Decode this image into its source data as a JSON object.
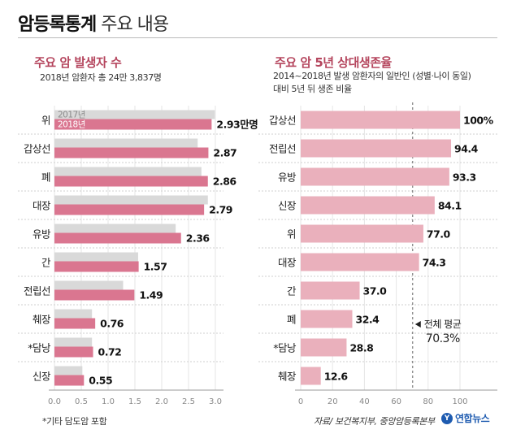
{
  "header": {
    "title": "암등록통계",
    "subtitle": "주요 내용"
  },
  "left_panel": {
    "title": "주요 암 발생자 수",
    "subtitle": "2018년 암환자 총 24만 3,837명"
  },
  "right_panel": {
    "title": "주요 암 5년 상대생존율",
    "subtitle_line1": "2014~2018년 발생 암환자의 일반인 (성별·나이 동일)",
    "subtitle_line2": "대비 5년 뒤 생존 비율"
  },
  "footer": {
    "note": "*기타 담도암 포함",
    "source": "자료/ 보건복지부, 중앙암등록본부",
    "logo_text": "연합뉴스"
  },
  "colors": {
    "accent": "#b5465e",
    "bar_2018": "#da7690",
    "bar_2017": "#d9d9d9",
    "bar_right": "#eab0bc"
  },
  "chart_data": [
    {
      "type": "bar",
      "orientation": "horizontal",
      "title": "주요 암 발생자 수",
      "unit": "만명",
      "categories": [
        "위",
        "갑상선",
        "폐",
        "대장",
        "유방",
        "간",
        "전립선",
        "췌장",
        "*담낭",
        "신장"
      ],
      "series": [
        {
          "name": "2017년",
          "values": [
            2.99,
            2.67,
            2.74,
            2.86,
            2.26,
            1.56,
            1.28,
            0.7,
            0.7,
            0.52
          ]
        },
        {
          "name": "2018년",
          "values": [
            2.93,
            2.87,
            2.86,
            2.79,
            2.36,
            1.57,
            1.49,
            0.76,
            0.72,
            0.55
          ]
        }
      ],
      "value_labels": [
        "2.93만명",
        "2.87",
        "2.86",
        "2.79",
        "2.36",
        "1.57",
        "1.49",
        "0.76",
        "0.72",
        "0.55"
      ],
      "xlim": [
        0,
        3.0
      ],
      "xticks": [
        "0.0",
        "0.5",
        "1.0",
        "1.5",
        "2.0",
        "2.5",
        "3.0"
      ],
      "legend": [
        "2017년",
        "2018년"
      ],
      "grid": true
    },
    {
      "type": "bar",
      "orientation": "horizontal",
      "title": "주요 암 5년 상대생존율",
      "unit": "%",
      "categories": [
        "갑상선",
        "전립선",
        "유방",
        "신장",
        "위",
        "대장",
        "간",
        "폐",
        "*담낭",
        "췌장"
      ],
      "values": [
        100,
        94.4,
        93.3,
        84.1,
        77.0,
        74.3,
        37.0,
        32.4,
        28.8,
        12.6
      ],
      "value_labels": [
        "100%",
        "94.4",
        "93.3",
        "84.1",
        "77.0",
        "74.3",
        "37.0",
        "32.4",
        "28.8",
        "12.6"
      ],
      "xlim": [
        0,
        100
      ],
      "xticks": [
        "0",
        "20",
        "40",
        "60",
        "80",
        "100"
      ],
      "average": {
        "value": 70.3,
        "label": "전체 평균",
        "value_label": "70.3%"
      },
      "grid": true
    }
  ]
}
